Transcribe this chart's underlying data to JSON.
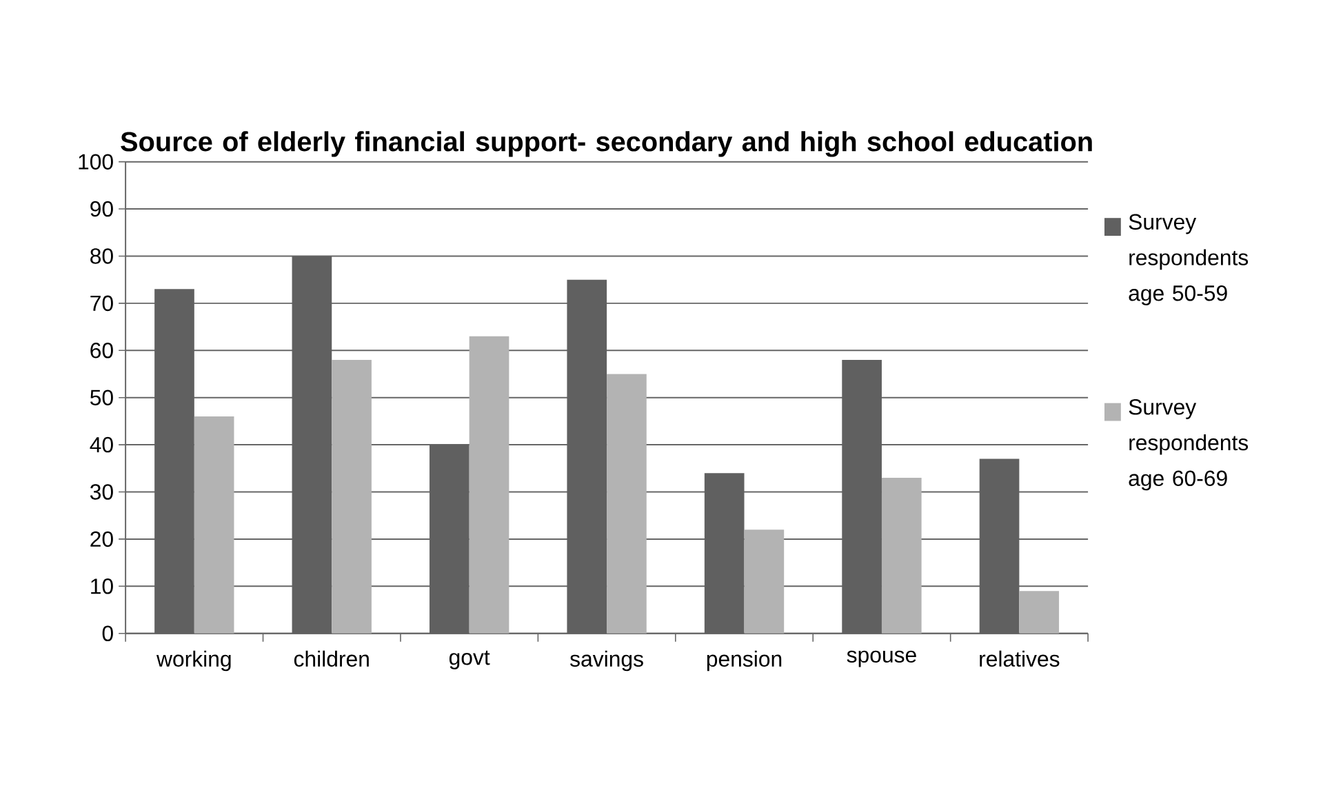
{
  "chart_data": {
    "type": "bar",
    "title": "Source of elderly financial support- secondary and high school education",
    "categories": [
      "working",
      "children",
      "govt",
      "savings",
      "pension",
      "spouse",
      "relatives"
    ],
    "series": [
      {
        "name": "Survey respondents age 50-59",
        "color": "#606060",
        "values": [
          73,
          80,
          40,
          75,
          34,
          58,
          37
        ]
      },
      {
        "name": "Survey respondents age 60-69",
        "color": "#b3b3b3",
        "values": [
          46,
          58,
          63,
          55,
          22,
          33,
          9
        ]
      }
    ],
    "ylim": [
      0,
      100
    ],
    "yticks": [
      0,
      10,
      20,
      30,
      40,
      50,
      60,
      70,
      80,
      90,
      100
    ],
    "grid": "y",
    "legend": "right"
  }
}
